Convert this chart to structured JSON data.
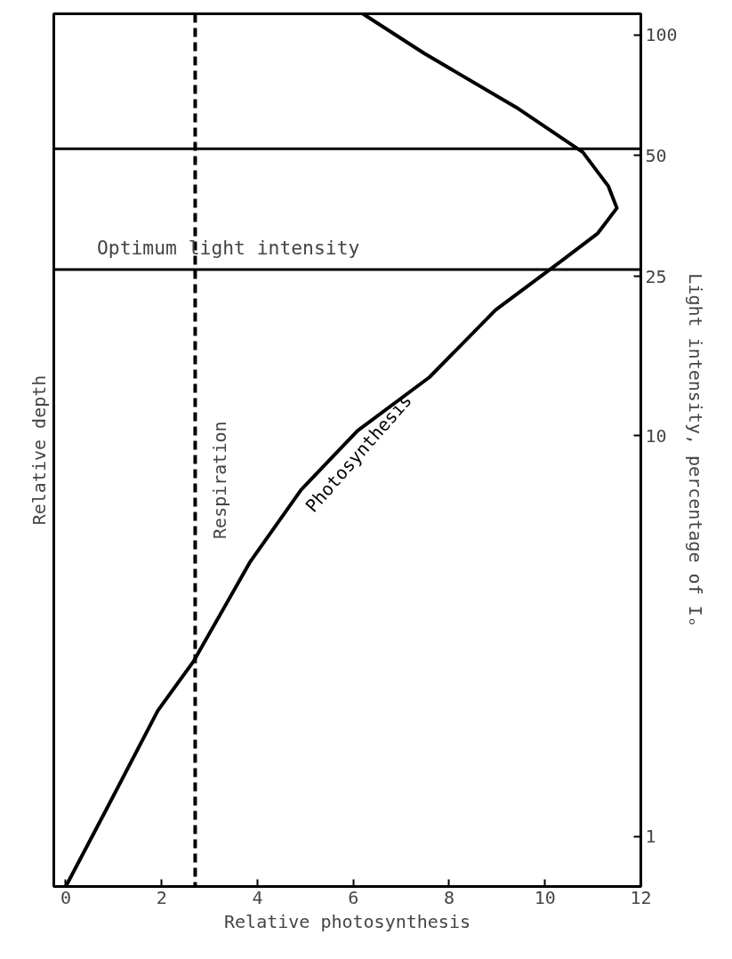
{
  "chart_data": {
    "type": "line",
    "xlabel": "Relative photosynthesis",
    "ylabel": "Light intensity, percentage of Iₒ",
    "annotations": [
      "Relative depth"
    ],
    "series": [
      {
        "name": "Photosynthesis",
        "color": "#000000",
        "x": [
          0,
          0.85,
          1.92,
          2.67,
          3.85,
          4.91,
          6.09,
          7.59,
          8.97,
          10.36,
          11.1,
          11.5,
          11.32,
          10.79,
          9.4,
          7.48,
          6.2
        ],
        "values": [
          0.75,
          1.17,
          2.06,
          2.74,
          4.85,
          7.33,
          10.3,
          14,
          20.6,
          27.4,
          32,
          37,
          42,
          51,
          66,
          90,
          113
        ]
      }
    ],
    "ref_lines": [
      {
        "axis": "x",
        "value": 2.7,
        "label": "Respiration",
        "color": "#000000",
        "line_style": "dashed"
      },
      {
        "axis": "y",
        "value": 26,
        "label": "Optimum light intensity",
        "color": "#000000",
        "line_style": "solid"
      },
      {
        "axis": "y",
        "value": 52,
        "color": "#000000",
        "line_style": "solid"
      }
    ],
    "xlim": [
      -0.25,
      12
    ],
    "xticks": [
      0,
      2,
      4,
      6,
      8,
      10,
      12
    ],
    "ylim": [
      0.75,
      113
    ],
    "yticks": [
      1,
      10,
      25,
      50,
      100
    ],
    "log": "y",
    "grid": false,
    "marker": "none",
    "line_style": "solid"
  }
}
